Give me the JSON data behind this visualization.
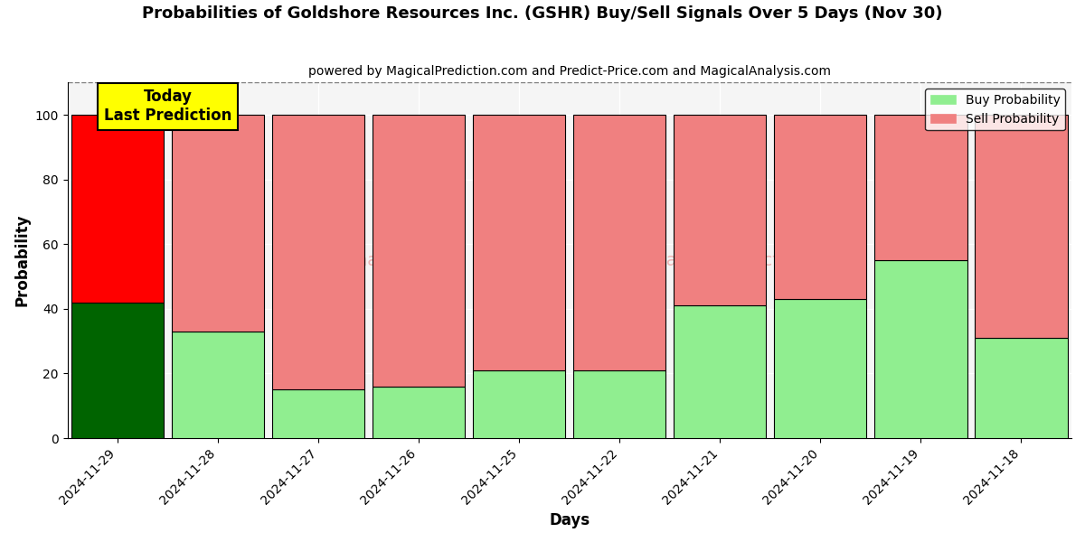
{
  "title": "Probabilities of Goldshore Resources Inc. (GSHR) Buy/Sell Signals Over 5 Days (Nov 30)",
  "subtitle": "powered by MagicalPrediction.com and Predict-Price.com and MagicalAnalysis.com",
  "xlabel": "Days",
  "ylabel": "Probability",
  "categories": [
    "2024-11-29",
    "2024-11-28",
    "2024-11-27",
    "2024-11-26",
    "2024-11-25",
    "2024-11-22",
    "2024-11-21",
    "2024-11-20",
    "2024-11-19",
    "2024-11-18"
  ],
  "buy_values": [
    42,
    33,
    15,
    16,
    21,
    21,
    41,
    43,
    55,
    31
  ],
  "sell_values": [
    58,
    67,
    85,
    84,
    79,
    79,
    59,
    57,
    45,
    69
  ],
  "today_buy_color": "#006400",
  "today_sell_color": "#ff0000",
  "buy_color": "#90ee90",
  "sell_color": "#f08080",
  "today_label_bg": "#ffff00",
  "today_label_text": "Today\nLast Prediction",
  "legend_buy": "Buy Probability",
  "legend_sell": "Sell Probability",
  "ylim": [
    0,
    110
  ],
  "dashed_line_y": 110,
  "bar_edge_color": "#000000",
  "bar_linewidth": 0.8,
  "plot_bg_color": "#f5f5f5",
  "fig_bg_color": "#ffffff"
}
